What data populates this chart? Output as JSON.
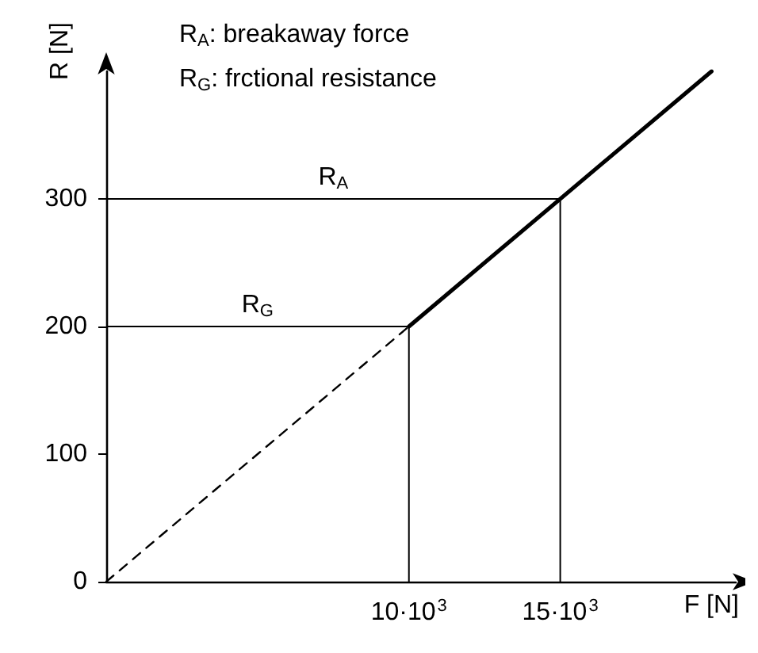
{
  "chart_data": {
    "type": "line",
    "xlabel": "F [N]",
    "ylabel": "R [N]",
    "annotations": [
      "R$_{A}$: breakaway force",
      "R$_{G}$: frctional resistance"
    ],
    "series": [
      {
        "line_style": "dashed",
        "color": "#000000",
        "x": [
          0,
          10000
        ],
        "values": [
          0,
          200
        ]
      },
      {
        "line_style": "solid",
        "color": "#000000",
        "x": [
          10000,
          20000
        ],
        "values": [
          200,
          400
        ]
      }
    ],
    "xlim": [
      0,
      20800
    ],
    "ylim": [
      0,
      400
    ],
    "xticks": [
      {
        "value": 10000,
        "label": "10·10$^{3}$"
      },
      {
        "value": 15000,
        "label": "15·10$^{3}$"
      }
    ],
    "yticks": [
      0,
      100,
      200,
      300
    ],
    "ref_lines": [
      {
        "axis": "y",
        "value": 300,
        "label": "R$_{A}$",
        "color": "#000000"
      },
      {
        "axis": "y",
        "value": 200,
        "label": "R$_{G}$",
        "color": "#000000"
      },
      {
        "axis": "x",
        "value": 10000,
        "color": "#000000"
      },
      {
        "axis": "x",
        "value": 15000,
        "color": "#000000"
      }
    ],
    "grid": false,
    "marker": "none"
  }
}
